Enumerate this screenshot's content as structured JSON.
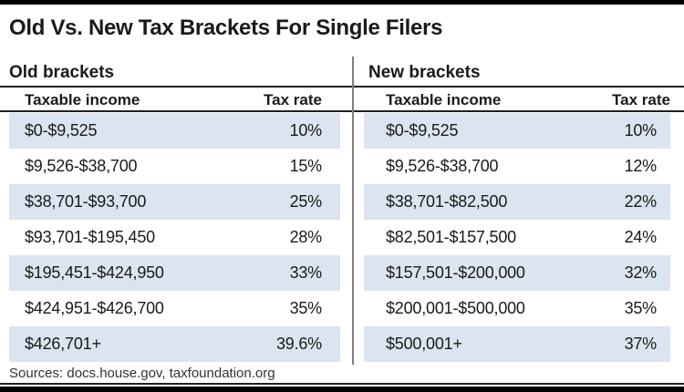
{
  "title": "Old Vs. New Tax Brackets For Single Filers",
  "sources": "Sources: docs.house.gov, taxfoundation.org",
  "colors": {
    "row_shade": "#dbe4f0",
    "rule": "#1f1f1f",
    "divider": "#7f7f7f",
    "text": "#1a1a1a",
    "bar": "#000000"
  },
  "chart_data": [
    {
      "type": "table",
      "title": "Old brackets",
      "columns": [
        "Taxable income",
        "Tax rate"
      ],
      "rows": [
        [
          "$0-$9,525",
          "10%"
        ],
        [
          "$9,526-$38,700",
          "15%"
        ],
        [
          "$38,701-$93,700",
          "25%"
        ],
        [
          "$93,701-$195,450",
          "28%"
        ],
        [
          "$195,451-$424,950",
          "33%"
        ],
        [
          "$424,951-$426,700",
          "35%"
        ],
        [
          "$426,701+",
          "39.6%"
        ]
      ]
    },
    {
      "type": "table",
      "title": "New brackets",
      "columns": [
        "Taxable income",
        "Tax rate"
      ],
      "rows": [
        [
          "$0-$9,525",
          "10%"
        ],
        [
          "$9,526-$38,700",
          "12%"
        ],
        [
          "$38,701-$82,500",
          "22%"
        ],
        [
          "$82,501-$157,500",
          "24%"
        ],
        [
          "$157,501-$200,000",
          "32%"
        ],
        [
          "$200,001-$500,000",
          "35%"
        ],
        [
          "$500,001+",
          "37%"
        ]
      ]
    }
  ]
}
